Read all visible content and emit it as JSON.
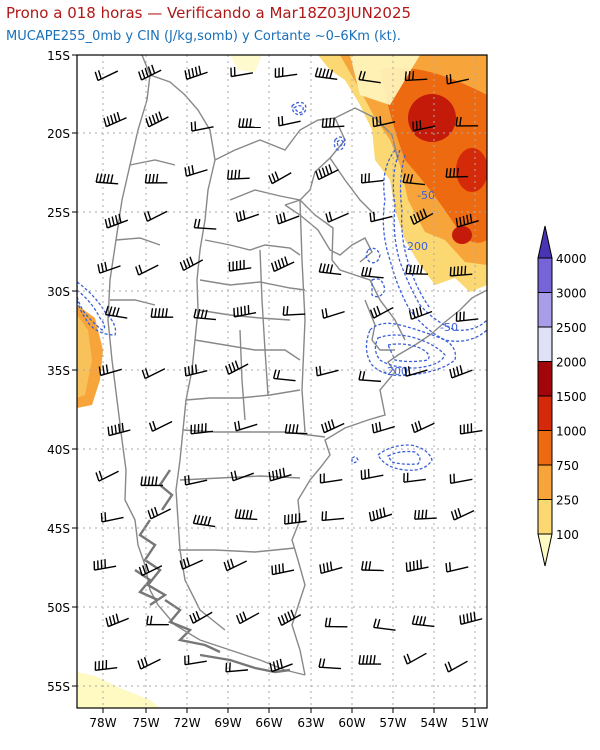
{
  "title": "Prono a 018 horas — Verificando a Mar18Z03JUN2025",
  "subtitle": "MUCAPE255_0mb y CIN (J/kg,somb) y Cortante ~0–6Km (kt).",
  "map": {
    "lat_labels": [
      "15S",
      "20S",
      "25S",
      "30S",
      "35S",
      "40S",
      "45S",
      "50S",
      "55S"
    ],
    "lon_labels": [
      "78W",
      "75W",
      "72W",
      "69W",
      "66W",
      "63W",
      "60W",
      "57W",
      "54W",
      "51W"
    ],
    "contour_labels": [
      "-50",
      "-200",
      "-50",
      "-200"
    ],
    "colors": {
      "land_border": "#888888",
      "coast": "#777777",
      "contour": "#3b5fd9",
      "grid": "#aaaaaa"
    }
  },
  "colorbar": {
    "levels": [
      "100",
      "250",
      "750",
      "1000",
      "1500",
      "2000",
      "2500",
      "3000",
      "4000"
    ],
    "colors": [
      "#fff9c2",
      "#fbd872",
      "#f7a53a",
      "#ee6a10",
      "#d42a0a",
      "#a3060a",
      "#dfe1f6",
      "#a89de8",
      "#7565d8",
      "#4a34b4"
    ]
  }
}
